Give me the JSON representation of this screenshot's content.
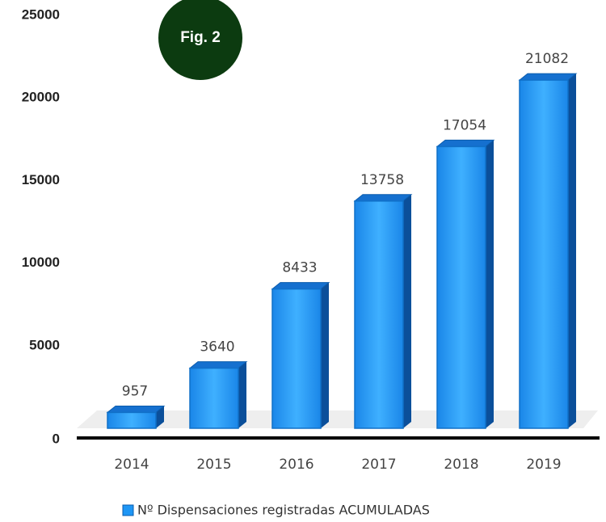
{
  "chart_data": {
    "type": "bar3d",
    "annotation": "Fig. 2",
    "categories": [
      "2014",
      "2015",
      "2016",
      "2017",
      "2018",
      "2019"
    ],
    "series": [
      {
        "name": "Nº Dispensaciones registradas ACUMULADAS",
        "color": "#1e96f5",
        "values": [
          957,
          3640,
          8433,
          13758,
          17054,
          21082
        ]
      }
    ],
    "ylim": [
      0,
      25000
    ],
    "yticks": [
      0,
      5000,
      10000,
      15000,
      20000,
      25000
    ],
    "grid": false
  }
}
